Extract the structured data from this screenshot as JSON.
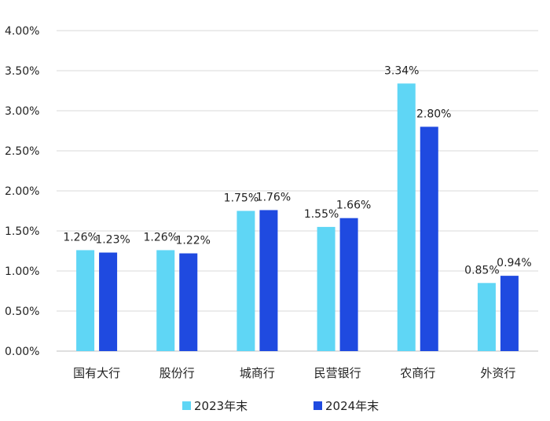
{
  "chart_data": {
    "type": "bar",
    "title": "",
    "xlabel": "",
    "ylabel": "",
    "categories": [
      "国有大行",
      "股份行",
      "城商行",
      "民营银行",
      "农商行",
      "外资行"
    ],
    "series": [
      {
        "name": "2023年末",
        "color": "#5fd6f5",
        "values": [
          1.26,
          1.26,
          1.75,
          1.55,
          3.34,
          0.85
        ],
        "labels": [
          "1.26%",
          "1.26%",
          "1.75%",
          "1.55%",
          "3.34%",
          "0.85%"
        ]
      },
      {
        "name": "2024年末",
        "color": "#1f4ae0",
        "values": [
          1.23,
          1.22,
          1.76,
          1.66,
          2.8,
          0.94
        ],
        "labels": [
          "1.23%",
          "1.22%",
          "1.76%",
          "1.66%",
          "2.80%",
          "0.94%"
        ]
      }
    ],
    "ylim": [
      0,
      4.0
    ],
    "yticks": [
      0,
      0.5,
      1.0,
      1.5,
      2.0,
      2.5,
      3.0,
      3.5,
      4.0
    ],
    "ytick_labels": [
      "0.00%",
      "0.50%",
      "1.00%",
      "1.50%",
      "2.00%",
      "2.50%",
      "3.00%",
      "3.50%",
      "4.00%"
    ],
    "grid": true,
    "legend_position": "bottom-center"
  }
}
